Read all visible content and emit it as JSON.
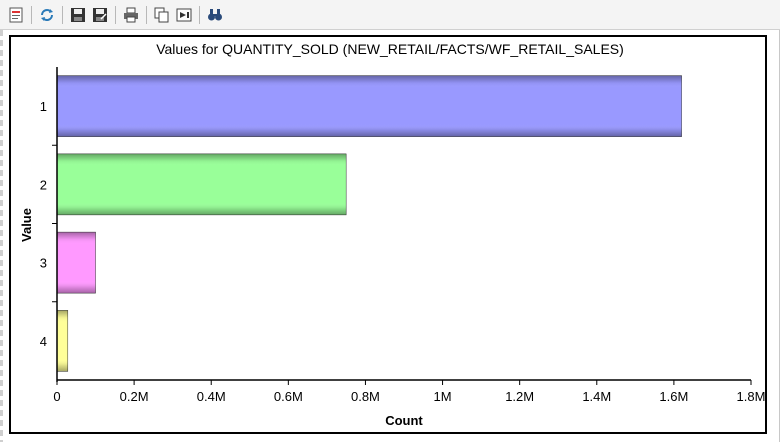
{
  "toolbar": {
    "buttons": [
      {
        "name": "report-icon",
        "title": "Report"
      },
      {
        "name": "refresh-icon",
        "title": "Refresh"
      },
      {
        "name": "save-icon",
        "title": "Save"
      },
      {
        "name": "save-as-icon",
        "title": "Save As"
      },
      {
        "name": "print-icon",
        "title": "Print"
      },
      {
        "name": "copy-icon",
        "title": "Copy"
      },
      {
        "name": "export-icon",
        "title": "Export"
      },
      {
        "name": "find-icon",
        "title": "Find"
      }
    ]
  },
  "chart_data": {
    "type": "bar",
    "orientation": "horizontal",
    "title": "Values for QUANTITY_SOLD (NEW_RETAIL/FACTS/WF_RETAIL_SALES)",
    "xlabel": "Count",
    "ylabel": "Value",
    "categories": [
      "1",
      "2",
      "3",
      "4"
    ],
    "values": [
      1620000,
      750000,
      100000,
      28000
    ],
    "colors": [
      "#9999ff",
      "#99ff99",
      "#ff99ff",
      "#ffff99"
    ],
    "xlim": [
      0,
      1800000
    ],
    "xticks": [
      "0",
      "0.2M",
      "0.4M",
      "0.6M",
      "0.8M",
      "1M",
      "1.2M",
      "1.4M",
      "1.6M",
      "1.8M"
    ],
    "grid": false,
    "legend": "none"
  }
}
